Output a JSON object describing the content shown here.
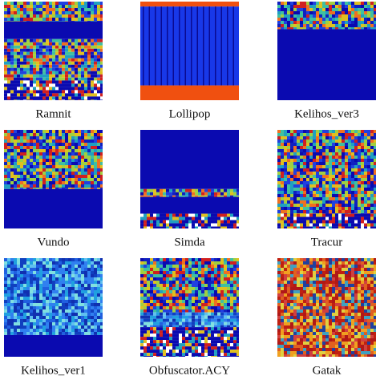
{
  "panels": [
    {
      "label": "Ramnit"
    },
    {
      "label": "Lollipop"
    },
    {
      "label": "Kelihos_ver3"
    },
    {
      "label": "Vundo"
    },
    {
      "label": "Simda"
    },
    {
      "label": "Tracur"
    },
    {
      "label": "Kelihos_ver1"
    },
    {
      "label": "Obfuscator.ACY"
    },
    {
      "label": "Gatak"
    }
  ]
}
